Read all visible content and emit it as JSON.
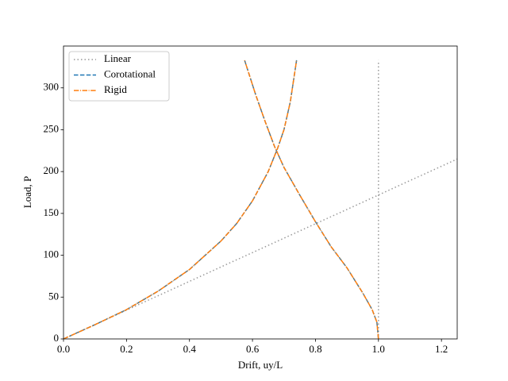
{
  "chart_data": {
    "type": "line",
    "xlabel": "Drift, uy/L",
    "ylabel": "Load, P",
    "xlim": [
      0,
      1.25
    ],
    "ylim": [
      0,
      350
    ],
    "xticks": [
      {
        "value": 0,
        "label": "0.0"
      },
      0.2,
      0.4,
      0.6,
      0.8,
      {
        "value": 1,
        "label": "1.0"
      },
      1.2
    ],
    "yticks": [
      0,
      50,
      100,
      150,
      200,
      250,
      300
    ],
    "legend": "upper left",
    "series": [
      {
        "name": "Linear",
        "color": "#999999",
        "style": "dotted",
        "x": [
          0,
          1.25,
          null,
          1,
          1
        ],
        "values": [
          0,
          215,
          null,
          0,
          333
        ]
      },
      {
        "name": "Corotational",
        "color": "#1f77b4",
        "style": "dashed",
        "x": [
          0,
          0.1,
          0.2,
          0.3,
          0.4,
          0.5,
          0.55,
          0.6,
          0.65,
          0.68,
          0.7,
          0.72,
          0.74,
          null,
          1.0,
          0.995,
          0.98,
          0.95,
          0.9,
          0.85,
          0.8,
          0.75,
          0.7,
          0.67,
          0.64,
          0.61,
          0.575
        ],
        "values": [
          0,
          17,
          35,
          57,
          83,
          117,
          138,
          165,
          200,
          228,
          250,
          283,
          333,
          null,
          0,
          20,
          35,
          55,
          85,
          110,
          140,
          172,
          205,
          230,
          260,
          292,
          333
        ]
      },
      {
        "name": "Rigid",
        "color": "#ff7f0e",
        "style": "dashdot",
        "x": [
          0,
          0.1,
          0.2,
          0.3,
          0.4,
          0.5,
          0.55,
          0.6,
          0.65,
          0.68,
          0.7,
          0.72,
          0.74,
          null,
          1.0,
          0.995,
          0.98,
          0.95,
          0.9,
          0.85,
          0.8,
          0.75,
          0.7,
          0.67,
          0.64,
          0.61,
          0.575
        ],
        "values": [
          0,
          17,
          35,
          57,
          83,
          117,
          138,
          165,
          200,
          228,
          250,
          283,
          333,
          null,
          0,
          20,
          35,
          55,
          85,
          110,
          140,
          172,
          205,
          230,
          260,
          292,
          333
        ]
      }
    ]
  }
}
